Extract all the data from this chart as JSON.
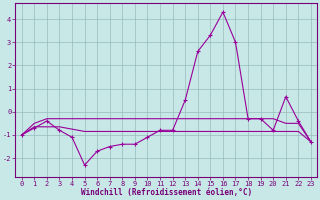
{
  "x": [
    0,
    1,
    2,
    3,
    4,
    5,
    6,
    7,
    8,
    9,
    10,
    11,
    12,
    13,
    14,
    15,
    16,
    17,
    18,
    19,
    20,
    21,
    22,
    23
  ],
  "y_main": [
    -1.0,
    -0.7,
    -0.4,
    -0.8,
    -1.1,
    -2.3,
    -1.7,
    -1.5,
    -1.4,
    -1.4,
    -1.1,
    -0.8,
    -0.8,
    0.5,
    2.6,
    3.3,
    4.3,
    3.0,
    -0.3,
    -0.3,
    -0.8,
    0.65,
    -0.4,
    -1.3
  ],
  "y_upper": [
    -1.0,
    -0.5,
    -0.3,
    -0.3,
    -0.3,
    -0.3,
    -0.3,
    -0.3,
    -0.3,
    -0.3,
    -0.3,
    -0.3,
    -0.3,
    -0.3,
    -0.3,
    -0.3,
    -0.3,
    -0.3,
    -0.3,
    -0.3,
    -0.3,
    -0.5,
    -0.5,
    -1.3
  ],
  "y_lower": [
    -1.0,
    -0.65,
    -0.65,
    -0.65,
    -0.75,
    -0.85,
    -0.85,
    -0.85,
    -0.85,
    -0.85,
    -0.85,
    -0.85,
    -0.85,
    -0.85,
    -0.85,
    -0.85,
    -0.85,
    -0.85,
    -0.85,
    -0.85,
    -0.85,
    -0.85,
    -0.85,
    -1.3
  ],
  "line_color": "#990099",
  "bg_color": "#c8e8e8",
  "grid_color": "#99bbbb",
  "axis_color": "#770077",
  "ylim": [
    -2.8,
    4.7
  ],
  "xlim": [
    -0.5,
    23.5
  ],
  "yticks": [
    -2,
    -1,
    0,
    1,
    2,
    3,
    4
  ],
  "xticks": [
    0,
    1,
    2,
    3,
    4,
    5,
    6,
    7,
    8,
    9,
    10,
    11,
    12,
    13,
    14,
    15,
    16,
    17,
    18,
    19,
    20,
    21,
    22,
    23
  ],
  "xlabel": "Windchill (Refroidissement éolien,°C)"
}
